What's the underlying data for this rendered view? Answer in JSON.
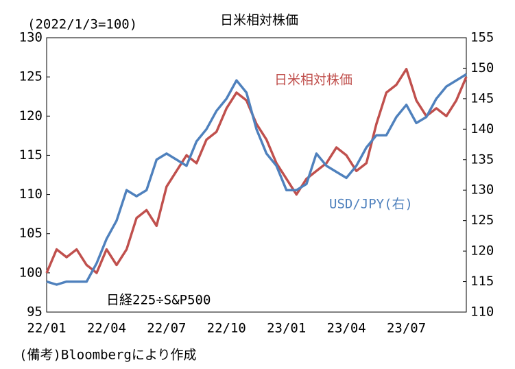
{
  "chart_data": {
    "type": "line",
    "title": "日米相対株価",
    "unit_note": "(2022/1/3=100)",
    "annotation": "日経225÷S&P500",
    "footnote": "(備考)Bloombergにより作成",
    "categories": [
      "22/01",
      null,
      null,
      null,
      null,
      null,
      "22/04",
      null,
      null,
      null,
      null,
      null,
      "22/07",
      null,
      null,
      null,
      null,
      null,
      "22/10",
      null,
      null,
      null,
      null,
      null,
      "23/01",
      null,
      null,
      null,
      null,
      null,
      "23/04",
      null,
      null,
      null,
      null,
      null,
      "23/07",
      null,
      null,
      null,
      null,
      null,
      null
    ],
    "series": [
      {
        "name": "日米相対株価",
        "color": "#c0504d",
        "values": [
          100,
          103,
          102,
          103,
          101,
          100,
          103,
          101,
          103,
          107,
          108,
          106,
          111,
          113,
          115,
          114,
          117,
          118,
          121,
          123,
          122,
          119,
          117,
          114,
          112,
          110,
          112,
          113,
          114,
          116,
          115,
          113,
          114,
          119,
          123,
          124,
          126,
          122,
          120,
          121,
          120,
          122,
          125
        ]
      },
      {
        "name": "USD/JPY(右)",
        "color": "#4f81bd",
        "axis": "y2",
        "values": [
          115,
          114.5,
          115,
          115,
          115,
          118,
          122,
          125,
          130,
          129,
          130,
          135,
          136,
          135,
          134,
          138,
          140,
          143,
          145,
          148,
          146,
          140,
          136,
          134,
          130,
          130,
          131,
          136,
          134,
          133,
          132,
          134,
          137,
          139,
          139,
          142,
          144,
          141,
          142,
          145,
          147,
          148,
          149
        ]
      }
    ],
    "ylim": [
      95,
      130
    ],
    "yticks": [
      95,
      100,
      105,
      110,
      115,
      120,
      125,
      130
    ],
    "y2lim": [
      110,
      155
    ],
    "y2ticks": [
      110,
      115,
      120,
      125,
      130,
      135,
      140,
      145,
      150,
      155
    ]
  }
}
